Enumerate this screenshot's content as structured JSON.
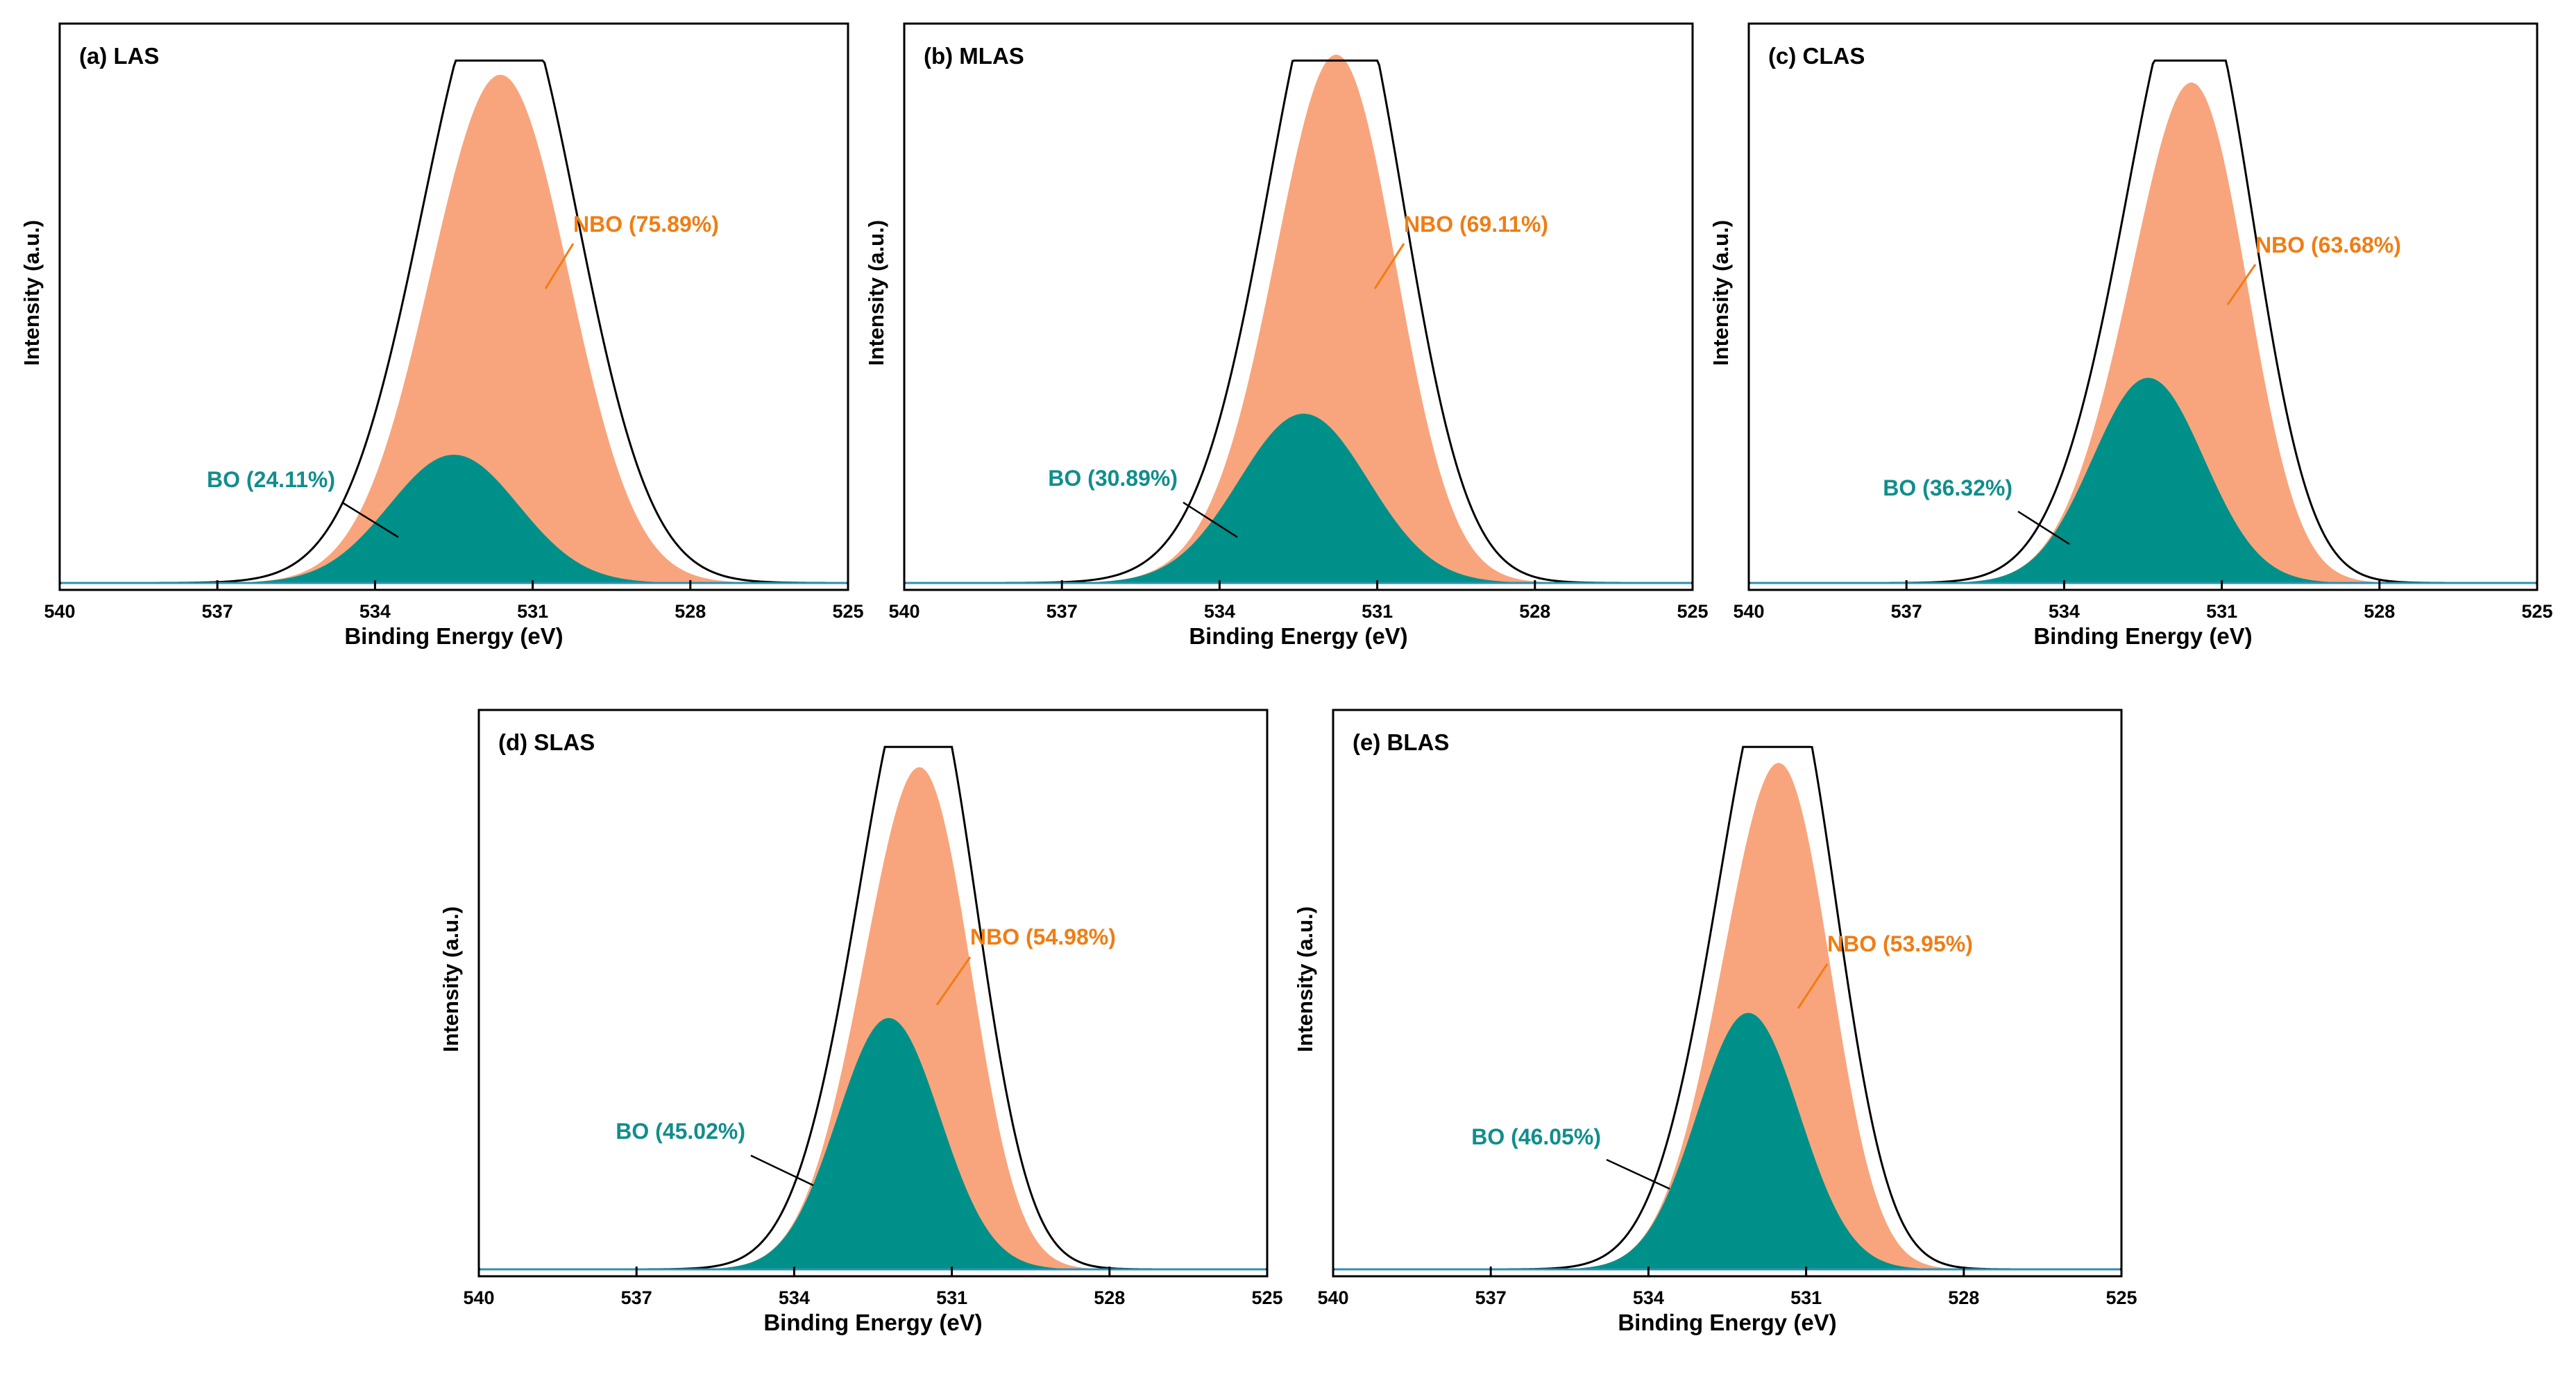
{
  "colors": {
    "nbo": "#F8A57D",
    "bo": "#00908A",
    "nbo_text": "#F07D14",
    "bo_text": "#108E8C",
    "envelope": "#000000",
    "baseline": "#2E8FB3"
  },
  "chart_data": [
    {
      "type": "area",
      "title": "(a) LAS",
      "xlabel": "Binding Energy (eV)",
      "ylabel": "Intensity (a.u.)",
      "xlim": [
        540,
        525
      ],
      "ylim": [
        0,
        1.05
      ],
      "xticks": [
        "540",
        "537",
        "534",
        "531",
        "528",
        "525"
      ],
      "series": [
        {
          "name": "NBO",
          "label": "NBO (75.89%)",
          "percent": 75.89,
          "center": 531.4,
          "height": 0.81,
          "fwhm": 2.9
        },
        {
          "name": "BO",
          "label": "BO (24.11%)",
          "percent": 24.11,
          "center": 532.5,
          "height": 0.25,
          "fwhm": 2.9
        }
      ]
    },
    {
      "type": "area",
      "title": "(b) MLAS",
      "xlabel": "Binding Energy (eV)",
      "ylabel": "Intensity (a.u.)",
      "xlim": [
        540,
        525
      ],
      "ylim": [
        0,
        1.05
      ],
      "xticks": [
        "540",
        "537",
        "534",
        "531",
        "528",
        "525"
      ],
      "series": [
        {
          "name": "NBO",
          "label": "NBO (69.11%)",
          "percent": 69.11,
          "center": 531.6,
          "height": 0.75,
          "fwhm": 2.5
        },
        {
          "name": "BO",
          "label": "BO (30.89%)",
          "percent": 30.89,
          "center": 532.4,
          "height": 0.33,
          "fwhm": 2.9
        }
      ]
    },
    {
      "type": "area",
      "title": "(c) CLAS",
      "xlabel": "Binding Energy (eV)",
      "ylabel": "Intensity (a.u.)",
      "xlim": [
        540,
        525
      ],
      "ylim": [
        0,
        1.05
      ],
      "xticks": [
        "540",
        "537",
        "534",
        "531",
        "528",
        "525"
      ],
      "series": [
        {
          "name": "NBO",
          "label": "NBO (63.68%)",
          "percent": 63.68,
          "center": 531.3,
          "height": 0.71,
          "fwhm": 2.2
        },
        {
          "name": "BO",
          "label": "BO (36.32%)",
          "percent": 36.32,
          "center": 532.4,
          "height": 0.4,
          "fwhm": 2.5
        }
      ]
    },
    {
      "type": "area",
      "title": "(d) SLAS",
      "xlabel": "Binding Energy (eV)",
      "ylabel": "Intensity (a.u.)",
      "xlim": [
        540,
        525
      ],
      "ylim": [
        0,
        1.05
      ],
      "xticks": [
        "540",
        "537",
        "534",
        "531",
        "528",
        "525"
      ],
      "series": [
        {
          "name": "NBO",
          "label": "NBO (54.98%)",
          "percent": 54.98,
          "center": 531.3,
          "height": 0.61,
          "fwhm": 2.0
        },
        {
          "name": "BO",
          "label": "BO (45.02%)",
          "percent": 45.02,
          "center": 532.2,
          "height": 0.49,
          "fwhm": 2.3
        }
      ]
    },
    {
      "type": "area",
      "title": "(e) BLAS",
      "xlabel": "Binding Energy (eV)",
      "ylabel": "Intensity (a.u.)",
      "xlim": [
        540,
        525
      ],
      "ylim": [
        0,
        1.05
      ],
      "xticks": [
        "540",
        "537",
        "534",
        "531",
        "528",
        "525"
      ],
      "series": [
        {
          "name": "NBO",
          "label": "NBO (53.95%)",
          "percent": 53.95,
          "center": 531.2,
          "height": 0.61,
          "fwhm": 2.0
        },
        {
          "name": "BO",
          "label": "BO (46.05%)",
          "percent": 46.05,
          "center": 532.1,
          "height": 0.5,
          "fwhm": 2.3
        }
      ]
    }
  ]
}
